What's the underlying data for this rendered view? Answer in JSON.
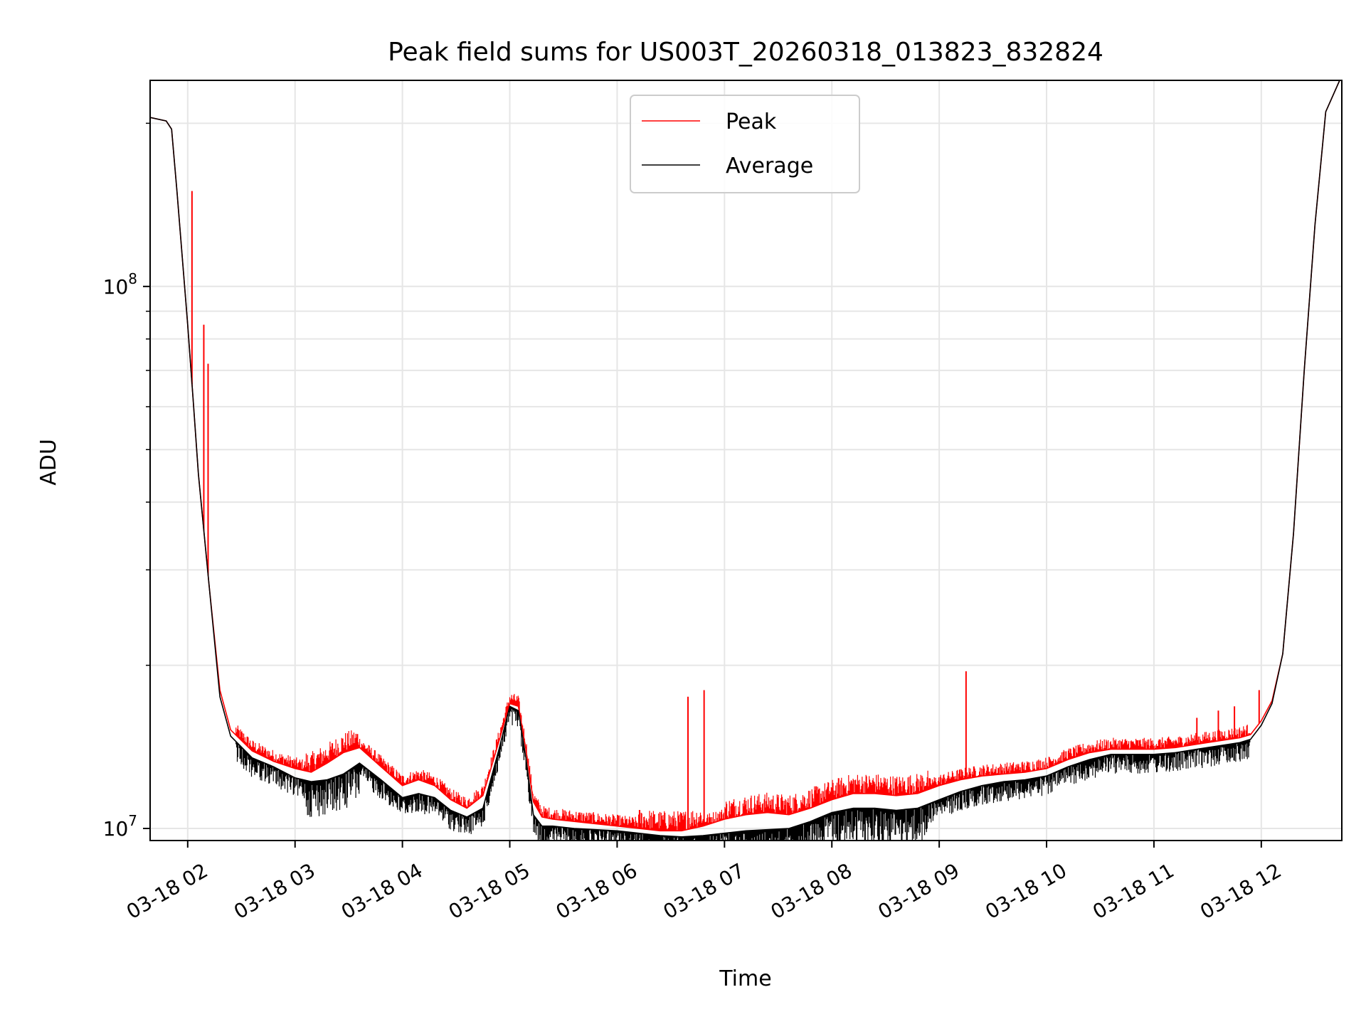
{
  "chart_data": {
    "type": "line",
    "title": "Peak field sums for US003T_20260318_013823_832824",
    "xlabel": "Time",
    "ylabel": "ADU",
    "yscale": "log",
    "ylim": [
      9500000,
      240000000
    ],
    "xlim_hours": [
      1.65,
      12.75
    ],
    "grid": true,
    "legend_position": "upper-center",
    "x_ticks": [
      {
        "value": 2,
        "label": "03-18 02"
      },
      {
        "value": 3,
        "label": "03-18 03"
      },
      {
        "value": 4,
        "label": "03-18 04"
      },
      {
        "value": 5,
        "label": "03-18 05"
      },
      {
        "value": 6,
        "label": "03-18 06"
      },
      {
        "value": 7,
        "label": "03-18 07"
      },
      {
        "value": 8,
        "label": "03-18 08"
      },
      {
        "value": 9,
        "label": "03-18 09"
      },
      {
        "value": 10,
        "label": "03-18 10"
      },
      {
        "value": 11,
        "label": "03-18 11"
      },
      {
        "value": 12,
        "label": "03-18 12"
      }
    ],
    "y_ticks_major": [
      {
        "value": 10000000,
        "base": "10",
        "exp": "7"
      },
      {
        "value": 100000000,
        "base": "10",
        "exp": "8"
      }
    ],
    "series": [
      {
        "name": "Peak",
        "color": "#ff0000",
        "x": [
          1.65,
          1.8,
          1.85,
          1.9,
          2.0,
          2.05,
          2.1,
          2.2,
          2.3,
          2.4,
          2.6,
          2.8,
          3.0,
          3.15,
          3.3,
          3.45,
          3.6,
          3.8,
          4.0,
          4.15,
          4.3,
          4.45,
          4.6,
          4.75,
          4.9,
          5.0,
          5.08,
          5.15,
          5.22,
          5.3,
          5.4,
          5.6,
          5.8,
          6.0,
          6.2,
          6.4,
          6.6,
          6.8,
          7.0,
          7.2,
          7.4,
          7.6,
          7.8,
          8.0,
          8.2,
          8.4,
          8.6,
          8.8,
          9.0,
          9.2,
          9.4,
          9.6,
          9.8,
          10.0,
          10.2,
          10.4,
          10.6,
          10.8,
          11.0,
          11.2,
          11.4,
          11.6,
          11.8,
          11.9,
          12.0,
          12.1,
          12.2,
          12.3,
          12.4,
          12.5,
          12.6,
          12.75
        ],
        "y": [
          205000000,
          202000000,
          195000000,
          150000000,
          85000000,
          62000000,
          45000000,
          28000000,
          18000000,
          15200000,
          13900000,
          13300000,
          12900000,
          12700000,
          13200000,
          13800000,
          14100000,
          13000000,
          12000000,
          12300000,
          12000000,
          11300000,
          10900000,
          11500000,
          14500000,
          17000000,
          16800000,
          14000000,
          11200000,
          10500000,
          10400000,
          10300000,
          10200000,
          10100000,
          10000000,
          9900000,
          9900000,
          10100000,
          10400000,
          10600000,
          10700000,
          10600000,
          10900000,
          11300000,
          11600000,
          11600000,
          11500000,
          11600000,
          12000000,
          12300000,
          12500000,
          12600000,
          12700000,
          12900000,
          13400000,
          13800000,
          14000000,
          14000000,
          14000000,
          14100000,
          14300000,
          14500000,
          14700000,
          14900000,
          15800000,
          17200000,
          21000000,
          35000000,
          70000000,
          130000000,
          210000000,
          245000000
        ],
        "spikes": [
          {
            "x": 2.04,
            "y": 150000000
          },
          {
            "x": 2.15,
            "y": 85000000
          },
          {
            "x": 2.19,
            "y": 72000000
          },
          {
            "x": 6.66,
            "y": 17500000
          },
          {
            "x": 6.81,
            "y": 18000000
          },
          {
            "x": 9.25,
            "y": 19500000
          },
          {
            "x": 11.4,
            "y": 16000000
          },
          {
            "x": 11.6,
            "y": 16500000
          },
          {
            "x": 11.75,
            "y": 16800000
          },
          {
            "x": 11.98,
            "y": 18000000
          }
        ]
      },
      {
        "name": "Average",
        "color": "#000000",
        "x": [
          1.65,
          1.8,
          1.85,
          1.9,
          2.0,
          2.05,
          2.1,
          2.2,
          2.3,
          2.4,
          2.6,
          2.8,
          3.0,
          3.15,
          3.3,
          3.45,
          3.6,
          3.8,
          4.0,
          4.15,
          4.3,
          4.45,
          4.6,
          4.75,
          4.9,
          5.0,
          5.08,
          5.15,
          5.22,
          5.3,
          5.4,
          5.6,
          5.8,
          6.0,
          6.2,
          6.4,
          6.6,
          6.8,
          7.0,
          7.2,
          7.4,
          7.6,
          7.8,
          8.0,
          8.2,
          8.4,
          8.6,
          8.8,
          9.0,
          9.2,
          9.4,
          9.6,
          9.8,
          10.0,
          10.2,
          10.4,
          10.6,
          10.8,
          11.0,
          11.2,
          11.4,
          11.6,
          11.8,
          11.9,
          12.0,
          12.1,
          12.2,
          12.3,
          12.4,
          12.5,
          12.6,
          12.75
        ],
        "y": [
          205000000,
          202000000,
          195000000,
          150000000,
          85000000,
          62000000,
          45000000,
          28000000,
          17500000,
          14800000,
          13500000,
          13000000,
          12400000,
          12200000,
          12300000,
          12600000,
          13200000,
          12300000,
          11400000,
          11600000,
          11400000,
          10800000,
          10500000,
          10900000,
          14000000,
          16800000,
          16500000,
          13500000,
          10600000,
          10100000,
          10100000,
          10000000,
          9950000,
          9900000,
          9800000,
          9700000,
          9650000,
          9700000,
          9800000,
          9900000,
          9950000,
          10000000,
          10300000,
          10700000,
          10900000,
          10900000,
          10800000,
          10900000,
          11300000,
          11700000,
          12000000,
          12200000,
          12300000,
          12500000,
          13000000,
          13400000,
          13700000,
          13700000,
          13700000,
          13800000,
          14000000,
          14200000,
          14400000,
          14600000,
          15500000,
          17000000,
          21000000,
          35000000,
          70000000,
          130000000,
          210000000,
          245000000
        ]
      }
    ]
  }
}
